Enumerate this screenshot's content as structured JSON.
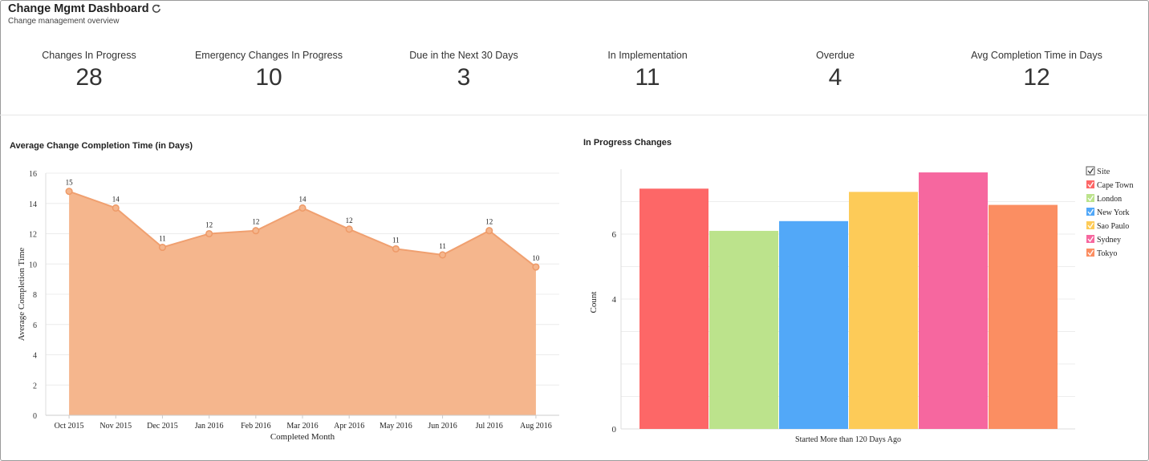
{
  "header": {
    "title": "Change Mgmt Dashboard",
    "subtitle": "Change management overview",
    "refresh_icon": "refresh-icon"
  },
  "kpis": [
    {
      "label": "Changes In Progress",
      "value": "28"
    },
    {
      "label": "Emergency Changes In Progress",
      "value": "10"
    },
    {
      "label": "Due in the Next 30 Days",
      "value": "3"
    },
    {
      "label": "In Implementation",
      "value": "11"
    },
    {
      "label": "Overdue",
      "value": "4"
    },
    {
      "label": "Avg Completion Time in Days",
      "value": "12"
    }
  ],
  "chart_data": [
    {
      "type": "area",
      "title": "Average Change Completion Time (in Days)",
      "xlabel": "Completed Month",
      "ylabel": "Average Completion Time",
      "categories": [
        "Oct 2015",
        "Nov 2015",
        "Dec 2015",
        "Jan 2016",
        "Feb 2016",
        "Mar 2016",
        "Apr 2016",
        "May 2016",
        "Jun 2016",
        "Jul 2016",
        "Aug 2016"
      ],
      "values": [
        14.8,
        13.7,
        11.1,
        12.0,
        12.2,
        13.7,
        12.3,
        11.0,
        10.6,
        12.2,
        9.8
      ],
      "data_labels": [
        "15",
        "14",
        "11",
        "12",
        "12",
        "14",
        "12",
        "11",
        "11",
        "12",
        "10"
      ],
      "ylim": [
        0,
        16
      ],
      "yticks": [
        0,
        2,
        4,
        6,
        8,
        10,
        12,
        14,
        16
      ],
      "color": "#f5b68d",
      "line_color": "#f0a070",
      "grid": true
    },
    {
      "type": "bar",
      "title": "In Progress Changes",
      "xlabel": "Started More than 120 Days Ago",
      "ylabel": "Count",
      "categories": [
        "Started More than 120 Days Ago"
      ],
      "series": [
        {
          "name": "Cape Town",
          "value": 7.4,
          "color": "#fd6767"
        },
        {
          "name": "London",
          "value": 6.1,
          "color": "#bce38c"
        },
        {
          "name": "New York",
          "value": 6.4,
          "color": "#52a8f8"
        },
        {
          "name": "Sao Paulo",
          "value": 7.3,
          "color": "#fdcb58"
        },
        {
          "name": "Sydney",
          "value": 7.9,
          "color": "#f6679f"
        },
        {
          "name": "Tokyo",
          "value": 6.9,
          "color": "#fb8e62"
        }
      ],
      "ylim": [
        0,
        8
      ],
      "yticks": [
        0,
        4,
        6
      ],
      "legend_title": "Site",
      "legend_position": "right",
      "grid": true
    }
  ]
}
